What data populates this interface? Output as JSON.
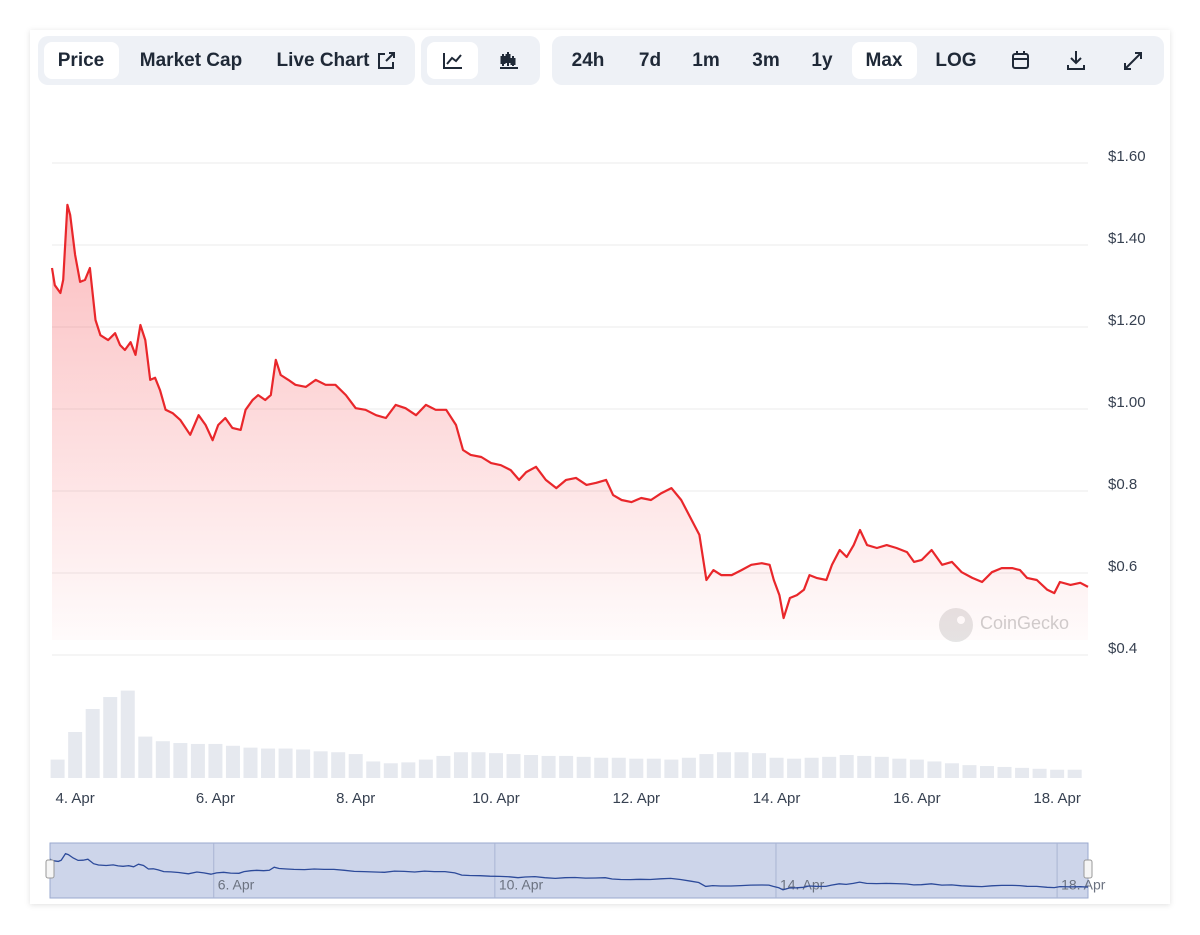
{
  "toolbar": {
    "views": [
      "Price",
      "Market Cap",
      "Live Chart"
    ],
    "active_view": 0,
    "ranges": [
      "24h",
      "7d",
      "1m",
      "3m",
      "1y",
      "Max",
      "LOG"
    ],
    "active_range": 5
  },
  "watermark": "CoinGecko",
  "chart_data": {
    "type": "line",
    "color": "#e9272b",
    "grid": true,
    "x": [
      3.67,
      3.71,
      3.79,
      3.83,
      3.89,
      3.93,
      4.0,
      4.07,
      4.14,
      4.21,
      4.29,
      4.36,
      4.47,
      4.57,
      4.64,
      4.71,
      4.79,
      4.86,
      4.93,
      5.0,
      5.07,
      5.14,
      5.21,
      5.29,
      5.39,
      5.5,
      5.64,
      5.76,
      5.86,
      5.96,
      6.04,
      6.14,
      6.24,
      6.36,
      6.43,
      6.53,
      6.61,
      6.71,
      6.79,
      6.86,
      6.93,
      7.04,
      7.14,
      7.29,
      7.43,
      7.57,
      7.71,
      7.86,
      8.0,
      8.14,
      8.29,
      8.43,
      8.57,
      8.71,
      8.86,
      9.0,
      9.14,
      9.29,
      9.43,
      9.53,
      9.64,
      9.79,
      9.93,
      10.07,
      10.21,
      10.33,
      10.43,
      10.57,
      10.71,
      10.86,
      11.0,
      11.14,
      11.29,
      11.43,
      11.57,
      11.67,
      11.79,
      11.93,
      12.07,
      12.21,
      12.36,
      12.5,
      12.64,
      12.79,
      12.9,
      13.0,
      13.1,
      13.21,
      13.36,
      13.5,
      13.64,
      13.79,
      13.9,
      13.96,
      14.04,
      14.1,
      14.19,
      14.29,
      14.39,
      14.47,
      14.57,
      14.71,
      14.79,
      14.9,
      15.0,
      15.1,
      15.19,
      15.29,
      15.43,
      15.57,
      15.71,
      15.86,
      15.96,
      16.07,
      16.21,
      16.36,
      16.5,
      16.64,
      16.79,
      16.93,
      17.07,
      17.21,
      17.36,
      17.47,
      17.57,
      17.71,
      17.86,
      17.96,
      18.04,
      18.19,
      18.33,
      18.44
    ],
    "values": [
      1.344,
      1.302,
      1.283,
      1.315,
      1.498,
      1.473,
      1.376,
      1.31,
      1.315,
      1.344,
      1.217,
      1.18,
      1.168,
      1.185,
      1.156,
      1.144,
      1.163,
      1.132,
      1.205,
      1.168,
      1.071,
      1.076,
      1.046,
      0.998,
      0.99,
      0.973,
      0.937,
      0.985,
      0.961,
      0.924,
      0.961,
      0.978,
      0.954,
      0.949,
      0.998,
      1.022,
      1.034,
      1.022,
      1.034,
      1.12,
      1.083,
      1.071,
      1.059,
      1.054,
      1.071,
      1.059,
      1.059,
      1.034,
      1.002,
      0.998,
      0.985,
      0.978,
      1.01,
      1.002,
      0.985,
      1.01,
      0.998,
      0.998,
      0.961,
      0.9,
      0.888,
      0.883,
      0.868,
      0.863,
      0.851,
      0.827,
      0.846,
      0.859,
      0.827,
      0.807,
      0.827,
      0.832,
      0.815,
      0.82,
      0.827,
      0.79,
      0.778,
      0.773,
      0.783,
      0.778,
      0.795,
      0.807,
      0.778,
      0.729,
      0.693,
      0.583,
      0.607,
      0.595,
      0.595,
      0.607,
      0.62,
      0.624,
      0.62,
      0.583,
      0.546,
      0.49,
      0.539,
      0.546,
      0.559,
      0.595,
      0.588,
      0.583,
      0.62,
      0.656,
      0.639,
      0.668,
      0.705,
      0.668,
      0.661,
      0.668,
      0.661,
      0.651,
      0.627,
      0.632,
      0.656,
      0.62,
      0.627,
      0.602,
      0.588,
      0.578,
      0.602,
      0.612,
      0.612,
      0.607,
      0.588,
      0.583,
      0.559,
      0.551,
      0.578,
      0.571,
      0.576,
      0.566
    ],
    "xlim": [
      3.67,
      18.44
    ],
    "ylim": [
      0.4,
      1.6
    ],
    "yticks": [
      {
        "value": 1.6,
        "label": "$1.60"
      },
      {
        "value": 1.4,
        "label": "$1.40"
      },
      {
        "value": 1.2,
        "label": "$1.20"
      },
      {
        "value": 1.0,
        "label": "$1.00"
      },
      {
        "value": 0.8,
        "label": "$0.8"
      },
      {
        "value": 0.6,
        "label": "$0.6"
      },
      {
        "value": 0.4,
        "label": "$0.4"
      }
    ],
    "xticks": [
      {
        "value": 4,
        "label": "4. Apr"
      },
      {
        "value": 6,
        "label": "6. Apr"
      },
      {
        "value": 8,
        "label": "8. Apr"
      },
      {
        "value": 10,
        "label": "10. Apr"
      },
      {
        "value": 12,
        "label": "12. Apr"
      },
      {
        "value": 14,
        "label": "14. Apr"
      },
      {
        "value": 16,
        "label": "16. Apr"
      },
      {
        "value": 18,
        "label": "18. Apr"
      }
    ],
    "volume": {
      "color": "#e6e9ef",
      "ylim": [
        0,
        100
      ],
      "x": [
        3.75,
        4.0,
        4.25,
        4.5,
        4.75,
        5.0,
        5.25,
        5.5,
        5.75,
        6.0,
        6.25,
        6.5,
        6.75,
        7.0,
        7.25,
        7.5,
        7.75,
        8.0,
        8.25,
        8.5,
        8.75,
        9.0,
        9.25,
        9.5,
        9.75,
        10.0,
        10.25,
        10.5,
        10.75,
        11.0,
        11.25,
        11.5,
        11.75,
        12.0,
        12.25,
        12.5,
        12.75,
        13.0,
        13.25,
        13.5,
        13.75,
        14.0,
        14.25,
        14.5,
        14.75,
        15.0,
        15.25,
        15.5,
        15.75,
        16.0,
        16.25,
        16.5,
        16.75,
        17.0,
        17.25,
        17.5,
        17.75,
        18.0,
        18.25
      ],
      "values": [
        20,
        50,
        75,
        88,
        95,
        45,
        40,
        38,
        37,
        37,
        35,
        33,
        32,
        32,
        31,
        29,
        28,
        26,
        18,
        16,
        17,
        20,
        24,
        28,
        28,
        27,
        26,
        25,
        24,
        24,
        23,
        22,
        22,
        21,
        21,
        20,
        22,
        26,
        28,
        28,
        27,
        22,
        21,
        22,
        23,
        25,
        24,
        23,
        21,
        20,
        18,
        16,
        14,
        13,
        12,
        11,
        10,
        9,
        9
      ]
    },
    "navigator": {
      "color": "#2c4a9a",
      "xticks": [
        {
          "value": 6,
          "label": "6. Apr"
        },
        {
          "value": 10,
          "label": "10. Apr"
        },
        {
          "value": 14,
          "label": "14. Apr"
        },
        {
          "value": 18,
          "label": "18. Apr"
        }
      ]
    }
  }
}
